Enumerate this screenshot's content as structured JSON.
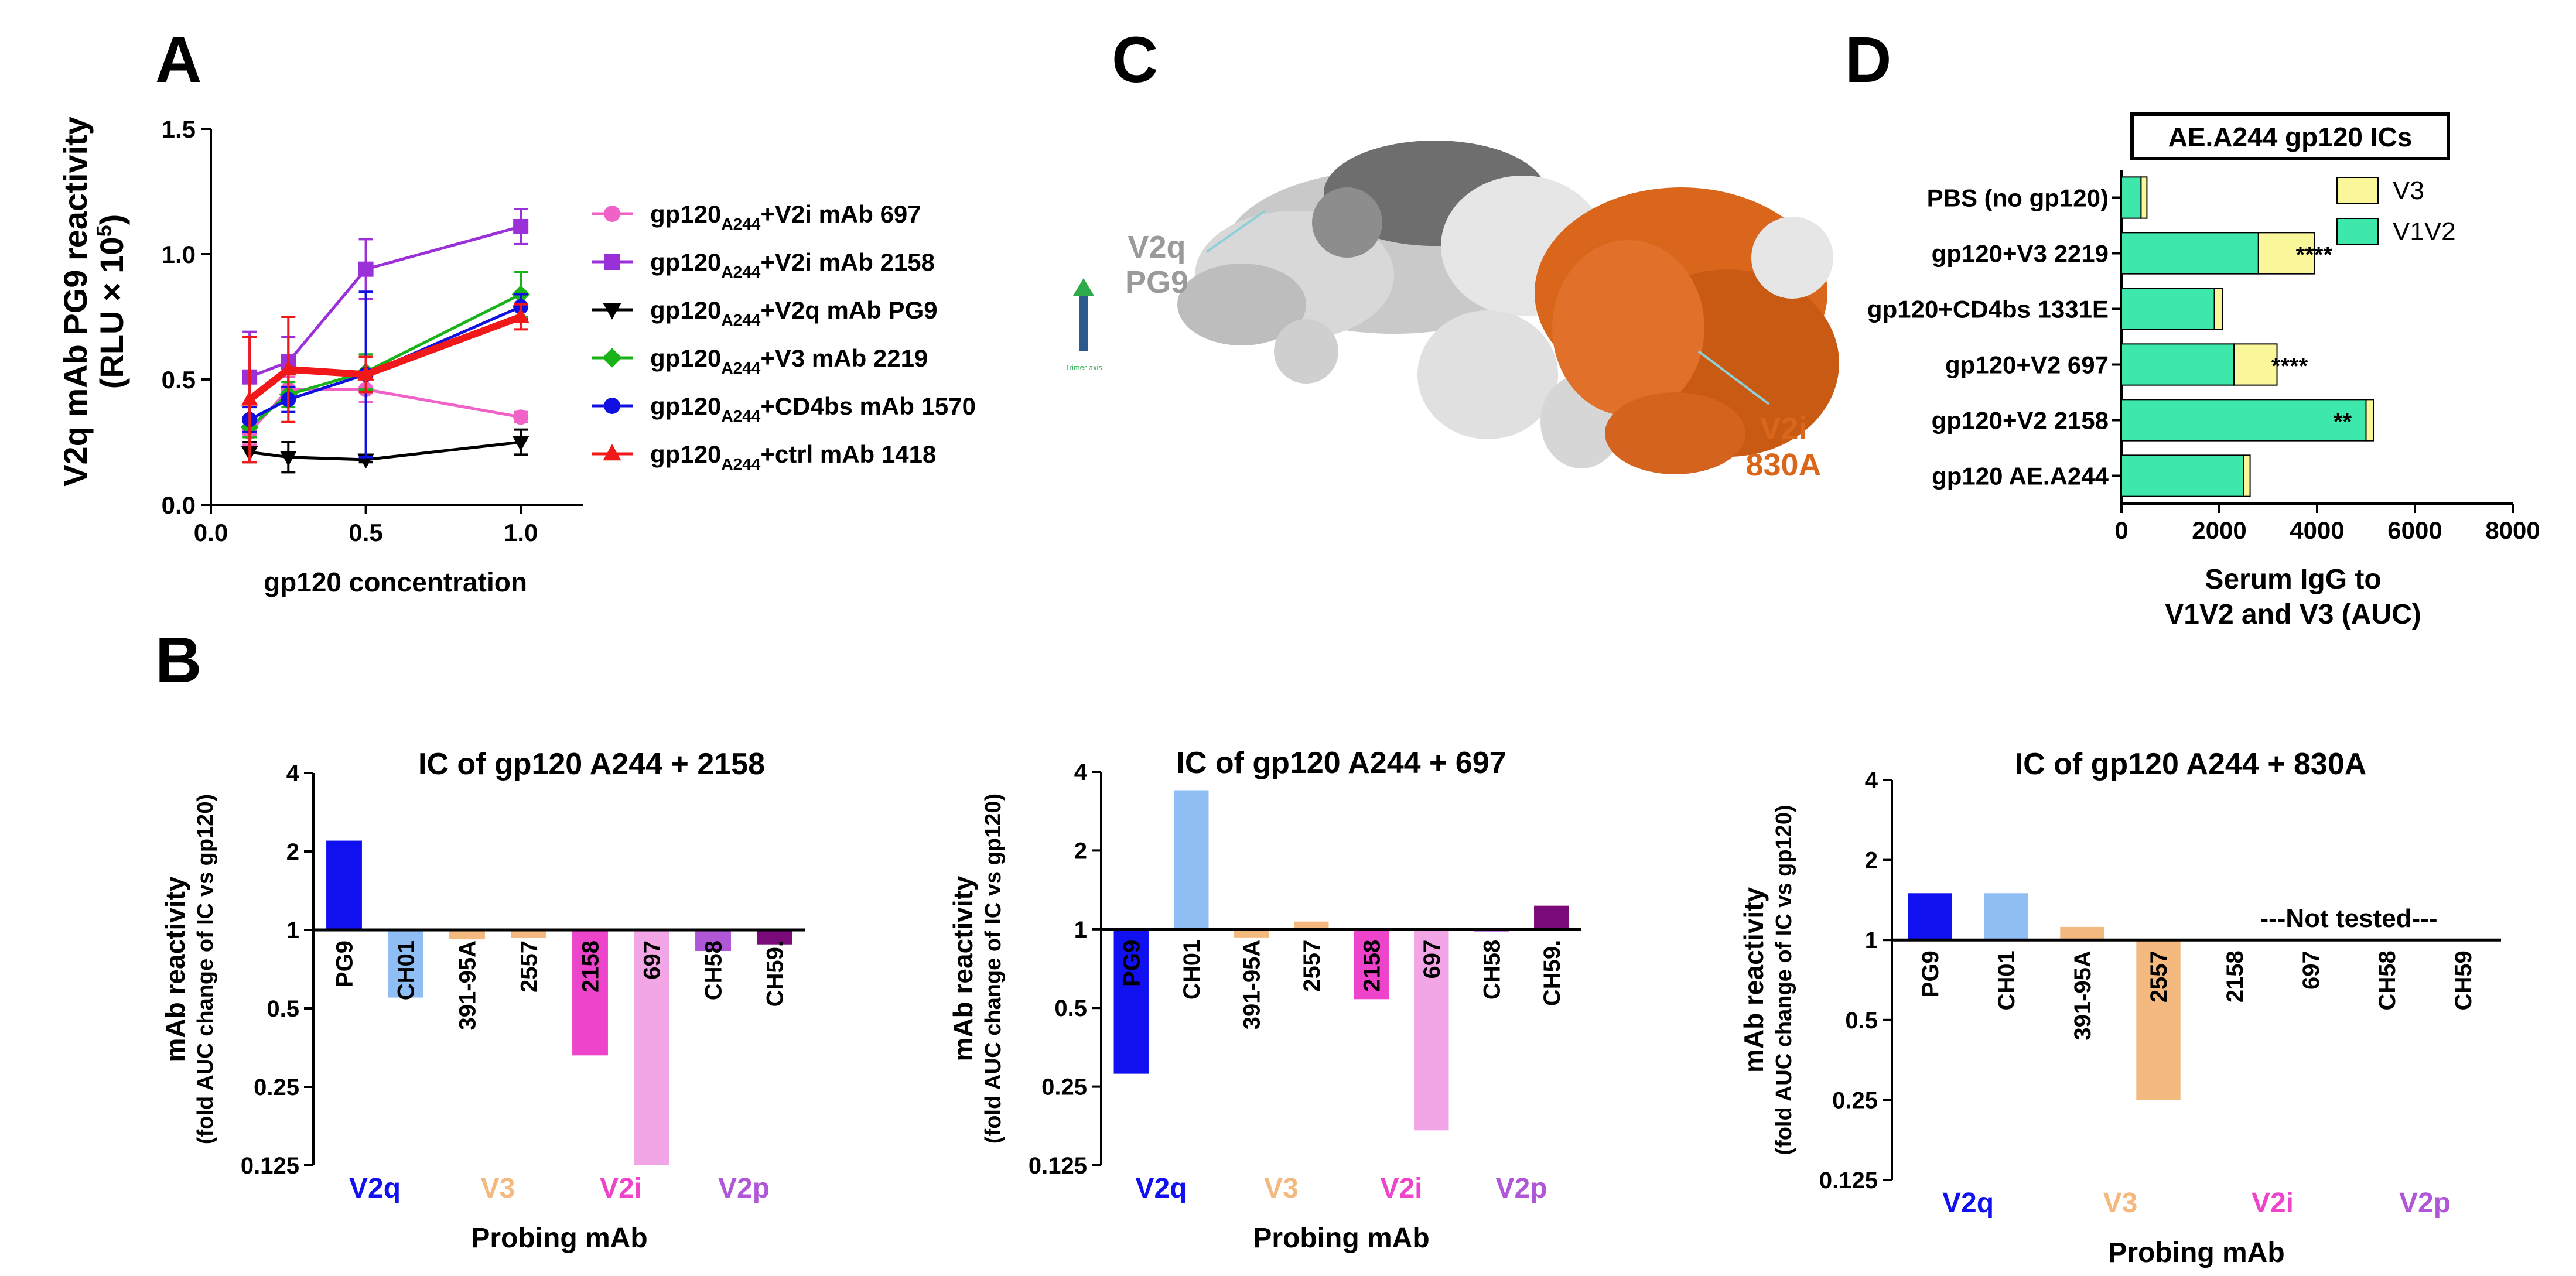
{
  "panel_labels": {
    "a": "A",
    "b": "B",
    "c": "C",
    "d": "D"
  },
  "colors": {
    "pink": "#f062c8",
    "purple": "#9b30d9",
    "black": "#000000",
    "green": "#19b319",
    "blue": "#1010e0",
    "red": "#f01818",
    "v2q": "#1010f0",
    "ch01": "#8fbef5",
    "v3": "#f4b97f",
    "v2i": "#ee44cc",
    "v2i_light": "#f3a6e6",
    "v2p": "#b057d8",
    "v2p_dark": "#7a0a7a",
    "seafoam": "#3ee8aa",
    "pale_yellow": "#faf79a",
    "orange": "#d9661a"
  },
  "chart_data": [
    {
      "id": "A",
      "type": "line",
      "xlabel": "gp120 concentration",
      "ylabel_line1": "V2q mAb PG9 reactivity",
      "ylabel_line2": "(RLU × 10",
      "ylabel_sup": "5",
      "ylabel_close": ")",
      "xlim": [
        0,
        1.2
      ],
      "ylim": [
        0,
        1.5
      ],
      "x_ticks": [
        0,
        0.5,
        1.0
      ],
      "x_tick_labels": [
        "0.0",
        "0.5",
        "1.0"
      ],
      "y_ticks": [
        0,
        0.5,
        1.0,
        1.5
      ],
      "y_tick_labels": [
        "0.0",
        "0.5",
        "1.0",
        "1.5"
      ],
      "x": [
        0.125,
        0.25,
        0.5,
        1.0
      ],
      "series": [
        {
          "pre": "gp120",
          "sub": "A244",
          "name": "+V2i mAb 697",
          "color": "#f062c8",
          "marker": "circle",
          "values": [
            0.29,
            0.46,
            0.46,
            0.35
          ],
          "errors": [
            0.05,
            0.05,
            0.05,
            0.02
          ]
        },
        {
          "pre": "gp120",
          "sub": "A244",
          "name": "+V2i mAb 2158",
          "color": "#9b30d9",
          "marker": "square",
          "values": [
            0.51,
            0.57,
            0.94,
            1.11
          ],
          "errors": [
            0.18,
            0.1,
            0.12,
            0.07
          ]
        },
        {
          "pre": "gp120",
          "sub": "A244",
          "name": "+V2q mAb PG9",
          "color": "#000000",
          "marker": "triangle-down",
          "values": [
            0.21,
            0.19,
            0.18,
            0.25
          ],
          "errors": [
            0.04,
            0.06,
            0.01,
            0.05
          ]
        },
        {
          "pre": "gp120",
          "sub": "A244",
          "name": "+V3 mAb 2219",
          "color": "#19b319",
          "marker": "diamond",
          "values": [
            0.31,
            0.44,
            0.53,
            0.84
          ],
          "errors": [
            0.04,
            0.05,
            0.07,
            0.09
          ]
        },
        {
          "pre": "gp120",
          "sub": "A244",
          "name": "+CD4bs mAb 1570",
          "color": "#1010e0",
          "marker": "circle",
          "values": [
            0.34,
            0.42,
            0.52,
            0.79
          ],
          "errors": [
            0.05,
            0.05,
            0.33,
            0.05
          ]
        },
        {
          "pre": "gp120",
          "sub": "A244",
          "name": "+ctrl mAb 1418",
          "color": "#f01818",
          "marker": "triangle-up",
          "values": [
            0.42,
            0.54,
            0.52,
            0.75
          ],
          "errors": [
            0.25,
            0.21,
            0.07,
            0.05
          ]
        }
      ]
    },
    {
      "id": "B1",
      "type": "bar",
      "title": "IC of gp120 A244 + 2158",
      "ylabel_line1": "mAb reactivity",
      "ylabel_line2": "(fold AUC change of IC vs gp120)",
      "xlabel": "Probing mAb",
      "y_scale": "log2",
      "y_ticks": [
        0.125,
        0.25,
        0.5,
        1,
        2,
        4
      ],
      "y_tick_labels": [
        "0.125",
        "0.25",
        "0.5",
        "1",
        "2",
        "4"
      ],
      "categories": [
        "PG9",
        "CH01",
        "391-95A",
        "2557",
        "2158",
        "697",
        "CH58",
        "CH59."
      ],
      "values": [
        2.2,
        0.55,
        0.92,
        0.93,
        0.33,
        0.125,
        0.83,
        0.88
      ],
      "colors": [
        "#1010f0",
        "#8fbef5",
        "#f4b97f",
        "#f4b97f",
        "#ee44cc",
        "#f3a6e6",
        "#b057d8",
        "#7a0a7a"
      ],
      "groups": [
        {
          "label": "V2q",
          "color": "#1010f0",
          "from": 0,
          "to": 1
        },
        {
          "label": "V3",
          "color": "#f4b97f",
          "from": 2,
          "to": 3
        },
        {
          "label": "V2i",
          "color": "#ee44cc",
          "from": 4,
          "to": 5
        },
        {
          "label": "V2p",
          "color": "#b057d8",
          "from": 6,
          "to": 7
        }
      ],
      "note": ""
    },
    {
      "id": "B2",
      "type": "bar",
      "title": "IC of gp120 A244 + 697",
      "ylabel_line1": "mAb reactivity",
      "ylabel_line2": "(fold AUC change of IC vs gp120)",
      "xlabel": "Probing mAb",
      "y_scale": "log2",
      "y_ticks": [
        0.125,
        0.25,
        0.5,
        1,
        2,
        4
      ],
      "y_tick_labels": [
        "0.125",
        "0.25",
        "0.5",
        "1",
        "2",
        "4"
      ],
      "categories": [
        "PG9",
        "CH01",
        "391-95A",
        "2557",
        "2158",
        "697",
        "CH58",
        "CH59."
      ],
      "values": [
        0.28,
        3.4,
        0.93,
        1.07,
        0.54,
        0.17,
        0.98,
        1.23
      ],
      "colors": [
        "#1010f0",
        "#8fbef5",
        "#f4b97f",
        "#f4b97f",
        "#ee44cc",
        "#f3a6e6",
        "#b057d8",
        "#7a0a7a"
      ],
      "groups": [
        {
          "label": "V2q",
          "color": "#1010f0",
          "from": 0,
          "to": 1
        },
        {
          "label": "V3",
          "color": "#f4b97f",
          "from": 2,
          "to": 3
        },
        {
          "label": "V2i",
          "color": "#ee44cc",
          "from": 4,
          "to": 5
        },
        {
          "label": "V2p",
          "color": "#b057d8",
          "from": 6,
          "to": 7
        }
      ],
      "note": ""
    },
    {
      "id": "B3",
      "type": "bar",
      "title": "IC of gp120 A244 + 830A",
      "ylabel_line1": "mAb reactivity",
      "ylabel_line2": "(fold AUC change of IC vs gp120)",
      "xlabel": "Probing mAb",
      "y_scale": "log2",
      "y_ticks": [
        0.125,
        0.25,
        0.5,
        1,
        2,
        4
      ],
      "y_tick_labels": [
        "0.125",
        "0.25",
        "0.5",
        "1",
        "2",
        "4"
      ],
      "categories": [
        "PG9",
        "CH01",
        "391-95A",
        "2557",
        "2158",
        "697",
        "CH58",
        "CH59"
      ],
      "values": [
        1.5,
        1.5,
        1.12,
        0.25,
        null,
        null,
        null,
        null
      ],
      "colors": [
        "#1010f0",
        "#8fbef5",
        "#f4b97f",
        "#f4b97f",
        "#ee44cc",
        "#f3a6e6",
        "#b057d8",
        "#7a0a7a"
      ],
      "groups": [
        {
          "label": "V2q",
          "color": "#1010f0",
          "from": 0,
          "to": 1
        },
        {
          "label": "V3",
          "color": "#f4b97f",
          "from": 2,
          "to": 3
        },
        {
          "label": "V2i",
          "color": "#ee44cc",
          "from": 4,
          "to": 5
        },
        {
          "label": "V2p",
          "color": "#b057d8",
          "from": 6,
          "to": 7
        }
      ],
      "note": "---Not tested---"
    },
    {
      "id": "D",
      "type": "bar",
      "orientation": "horizontal",
      "stacked": true,
      "title": "AE.A244 gp120 ICs",
      "xlabel_line1": "Serum IgG to",
      "xlabel_line2": "V1V2 and V3 (AUC)",
      "xlim": [
        0,
        8000
      ],
      "x_ticks": [
        0,
        2000,
        4000,
        6000,
        8000
      ],
      "x_tick_labels": [
        "0",
        "2000",
        "4000",
        "6000",
        "8000"
      ],
      "categories": [
        "PBS (no gp120)",
        "gp120+V3 2219",
        "gp120+CD4bs 1331E",
        "gp120+V2 697",
        "gp120+V2 2158",
        "gp120 AE.A244"
      ],
      "series": [
        {
          "name": "V1V2",
          "color": "#3ee8aa",
          "values": [
            400,
            2800,
            1900,
            2300,
            5000,
            2500
          ]
        },
        {
          "name": "V3",
          "color": "#faf79a",
          "values": [
            120,
            1150,
            170,
            880,
            150,
            130
          ]
        }
      ],
      "annotations": [
        "",
        "****",
        "",
        "****",
        "**",
        ""
      ]
    }
  ],
  "structure": {
    "label_v2q_1": "V2q",
    "label_v2q_2": "PG9",
    "label_v2i_1": "V2i",
    "label_v2i_2": "830A",
    "trimer_axis": "Trimer axis"
  }
}
